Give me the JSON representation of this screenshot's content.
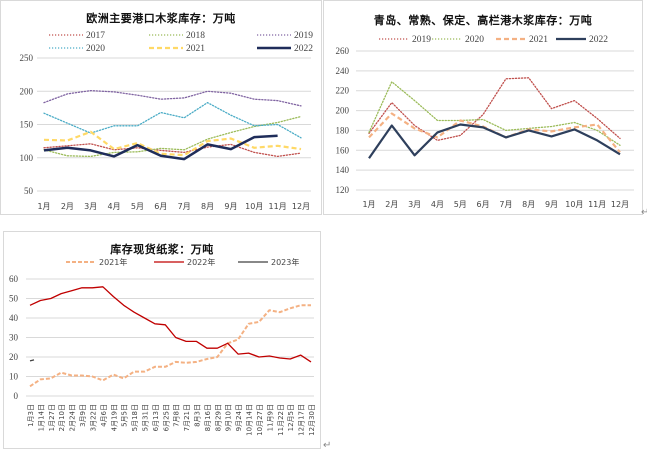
{
  "chart_data": [
    {
      "id": "europe",
      "type": "line",
      "title": "欧洲主要港口木浆库存：万吨",
      "xlabel": "",
      "ylabel": "",
      "ylim": [
        50,
        250
      ],
      "yticks": [
        50,
        100,
        150,
        200,
        250
      ],
      "grid": true,
      "legend_position": "top",
      "categories": [
        "1月",
        "2月",
        "3月",
        "4月",
        "5月",
        "6月",
        "7月",
        "8月",
        "9月",
        "10月",
        "11月",
        "12月"
      ],
      "series": [
        {
          "name": "2017",
          "color": "#c0504d",
          "style": "dotted",
          "values": [
            115,
            118,
            121,
            112,
            115,
            111,
            108,
            116,
            120,
            108,
            102,
            107
          ]
        },
        {
          "name": "2018",
          "color": "#9bbb59",
          "style": "dotted",
          "values": [
            112,
            103,
            102,
            108,
            109,
            114,
            112,
            128,
            138,
            147,
            153,
            162
          ]
        },
        {
          "name": "2019",
          "color": "#8064a2",
          "style": "dotted",
          "values": [
            183,
            196,
            201,
            199,
            194,
            188,
            190,
            200,
            197,
            188,
            186,
            178
          ]
        },
        {
          "name": "2020",
          "color": "#4bacc6",
          "style": "dotted",
          "values": [
            167,
            152,
            137,
            148,
            148,
            168,
            160,
            183,
            164,
            148,
            150,
            130
          ]
        },
        {
          "name": "2021",
          "color": "#ffd966",
          "style": "dashed",
          "values": [
            127,
            126,
            139,
            113,
            122,
            106,
            104,
            125,
            129,
            115,
            118,
            113
          ]
        },
        {
          "name": "2022",
          "color": "#1f2d5a",
          "style": "solid",
          "values": [
            111,
            115,
            111,
            102,
            119,
            103,
            98,
            120,
            113,
            131,
            133,
            null
          ]
        }
      ]
    },
    {
      "id": "china-ports",
      "type": "line",
      "title": "青岛、常熟、保定、高栏港木浆库存：万吨",
      "xlabel": "",
      "ylabel": "",
      "ylim": [
        120,
        260
      ],
      "yticks": [
        120,
        140,
        160,
        180,
        200,
        220,
        240,
        260
      ],
      "grid": true,
      "legend_position": "top",
      "categories": [
        "1月",
        "2月",
        "3月",
        "4月",
        "5月",
        "6月",
        "7月",
        "8月",
        "9月",
        "10月",
        "11月",
        "12月"
      ],
      "series": [
        {
          "name": "2019",
          "color": "#c0504d",
          "style": "dotted",
          "values": [
            177,
            208,
            185,
            170,
            175,
            196,
            232,
            233,
            202,
            210,
            192,
            172
          ]
        },
        {
          "name": "2020",
          "color": "#9bbb59",
          "style": "dotted",
          "values": [
            178,
            229,
            210,
            190,
            190,
            191,
            180,
            182,
            184,
            188,
            180,
            165
          ]
        },
        {
          "name": "2021",
          "color": "#f4b183",
          "style": "dashed",
          "values": [
            173,
            197,
            182,
            173,
            190,
            184,
            173,
            181,
            179,
            183,
            186,
            158
          ]
        },
        {
          "name": "2022",
          "color": "#2e3f5c",
          "style": "solid",
          "values": [
            152,
            185,
            155,
            178,
            186,
            183,
            173,
            180,
            174,
            181,
            170,
            156
          ]
        }
      ]
    },
    {
      "id": "spot-pulp",
      "type": "line",
      "title": "库存现货纸浆：万吨",
      "xlabel": "",
      "ylabel": "",
      "ylim": [
        0,
        60
      ],
      "yticks": [
        0,
        10,
        20,
        30,
        40,
        50,
        60
      ],
      "grid": true,
      "legend_position": "top",
      "categories": [
        "1月3日",
        "1月14日",
        "1月27日",
        "2月10日",
        "2月24日",
        "3月9日",
        "3月22日",
        "4月6日",
        "4月19日",
        "5月5日",
        "5月18日",
        "5月31日",
        "6月13日",
        "6月25日",
        "7月8日",
        "7月21日",
        "8月3日",
        "8月16日",
        "8月29日",
        "9月10日",
        "9月24日",
        "10月14日",
        "10月27日",
        "11月9日",
        "11月22日",
        "12月5日",
        "12月17日",
        "12月30日"
      ],
      "series": [
        {
          "name": "2021年",
          "color": "#f4b183",
          "style": "dashed",
          "values": [
            5,
            8.5,
            9,
            12,
            10.5,
            10.5,
            10,
            8,
            11,
            9,
            12.5,
            12.5,
            15,
            15,
            17.5,
            17,
            17.5,
            19,
            20,
            27,
            29,
            37,
            38,
            44,
            43,
            45,
            46.5,
            46.5
          ]
        },
        {
          "name": "2022年",
          "color": "#c00000",
          "style": "solid",
          "values": [
            46.5,
            49,
            50,
            52.5,
            54,
            55.5,
            55.5,
            56,
            51,
            46.5,
            43,
            40,
            37,
            36.5,
            30,
            28,
            28,
            24.5,
            24.5,
            27,
            21.5,
            22,
            20,
            20.5,
            19.5,
            19,
            21,
            17.5
          ]
        },
        {
          "name": "2023年",
          "color": "#404040",
          "style": "solid",
          "values": [
            18,
            18.5,
            null,
            null,
            null,
            null,
            null,
            null,
            null,
            null,
            null,
            null,
            null,
            null,
            null,
            null,
            null,
            null,
            null,
            null,
            null,
            null,
            null,
            null,
            null,
            null,
            null,
            null
          ]
        }
      ]
    }
  ]
}
